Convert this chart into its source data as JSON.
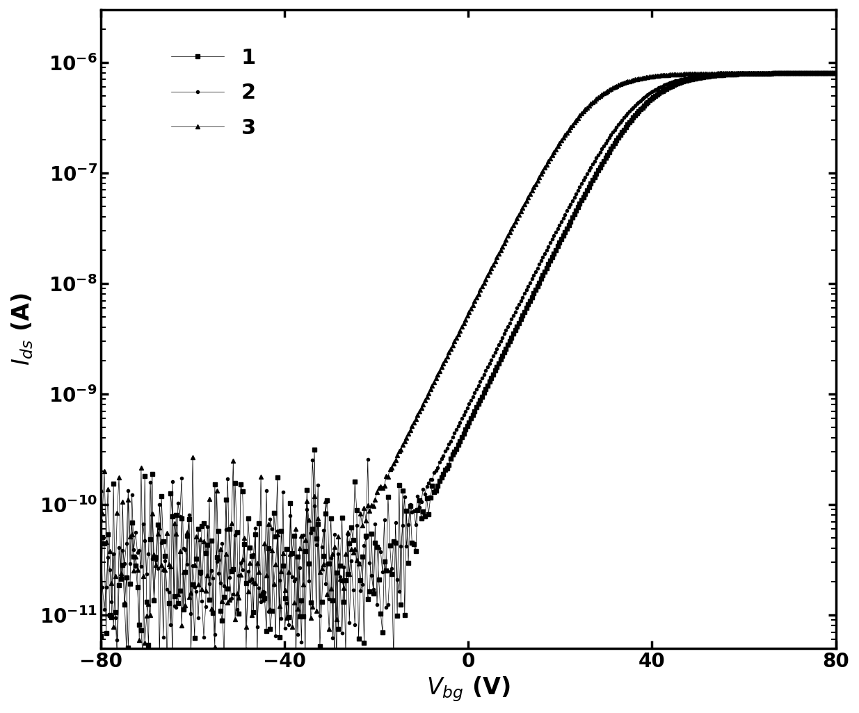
{
  "title": "",
  "xlabel": "$V_{bg}$ (V)",
  "ylabel": "$I_{ds}$ (A)",
  "xlim": [
    -80,
    80
  ],
  "ylim": [
    5e-12,
    3e-06
  ],
  "background_color": "#ffffff",
  "series": [
    {
      "label": "1",
      "marker": "s",
      "vth": -15,
      "noise_floor": 3e-11,
      "on_current": 8e-07,
      "subthreshold_slope": 12,
      "marker_size": 4,
      "seed": 1
    },
    {
      "label": "2",
      "marker": "o",
      "vth": -17,
      "noise_floor": 3e-11,
      "on_current": 8e-07,
      "subthreshold_slope": 12,
      "marker_size": 3,
      "seed": 2
    },
    {
      "label": "3",
      "marker": "^",
      "vth": -27,
      "noise_floor": 3e-11,
      "on_current": 8e-07,
      "subthreshold_slope": 12,
      "marker_size": 4,
      "seed": 3
    }
  ],
  "figsize": [
    12.35,
    10.26
  ],
  "dpi": 100
}
